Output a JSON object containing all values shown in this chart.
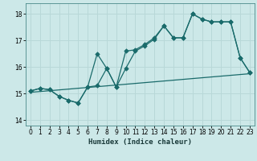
{
  "xlabel": "Humidex (Indice chaleur)",
  "bg_color": "#cce8e8",
  "grid_color": "#b8d8d8",
  "line_color": "#1a6b6b",
  "xlim": [
    -0.5,
    23.5
  ],
  "ylim": [
    13.8,
    18.4
  ],
  "xticks": [
    0,
    1,
    2,
    3,
    4,
    5,
    6,
    7,
    8,
    9,
    10,
    11,
    12,
    13,
    14,
    15,
    16,
    17,
    18,
    19,
    20,
    21,
    22,
    23
  ],
  "yticks": [
    14,
    15,
    16,
    17,
    18
  ],
  "line1_x": [
    0,
    1,
    2,
    3,
    4,
    5,
    6,
    7,
    8,
    9,
    10,
    11,
    12,
    13,
    14,
    15,
    16,
    17,
    18,
    19,
    20,
    21,
    22,
    23
  ],
  "line1_y": [
    15.1,
    15.2,
    15.15,
    14.9,
    14.75,
    14.65,
    15.25,
    16.5,
    15.95,
    15.25,
    16.6,
    16.65,
    16.85,
    17.1,
    17.55,
    17.1,
    17.1,
    18.0,
    17.8,
    17.7,
    17.7,
    17.7,
    16.35,
    15.8
  ],
  "line2_x": [
    0,
    1,
    2,
    3,
    4,
    5,
    6,
    7,
    8,
    9,
    10,
    11,
    12,
    13,
    14,
    15,
    16,
    17,
    18,
    19,
    20,
    21,
    22,
    23
  ],
  "line2_y": [
    15.1,
    15.2,
    15.15,
    14.9,
    14.75,
    14.65,
    15.25,
    15.3,
    15.95,
    15.25,
    15.95,
    16.6,
    16.8,
    17.05,
    17.55,
    17.1,
    17.1,
    18.0,
    17.8,
    17.7,
    17.7,
    17.7,
    16.35,
    15.8
  ],
  "line3_x": [
    0,
    23
  ],
  "line3_y": [
    15.05,
    15.75
  ]
}
